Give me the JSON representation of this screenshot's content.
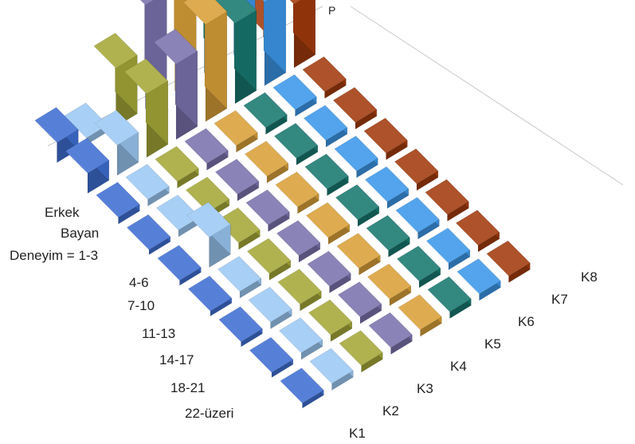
{
  "chart_data": {
    "type": "bar3d",
    "title": "",
    "corner_label": "P",
    "rows": [
      "Erkek",
      "Bayan",
      "Deneyim = 1-3",
      "4-6",
      "7-10",
      "11-13",
      "14-17",
      "18-21",
      "22-üzeri"
    ],
    "columns": [
      "K1",
      "K2",
      "K3",
      "K4",
      "K5",
      "K6",
      "K7",
      "K8"
    ],
    "series": [
      {
        "name": "K1",
        "color": "#3f6fd3",
        "values": [
          0.12,
          0.12,
          0.04,
          0.03,
          0.03,
          0.03,
          0.03,
          0.03,
          0.03
        ]
      },
      {
        "name": "K2",
        "color": "#9cc9f4",
        "values": [
          0.04,
          0.18,
          0.04,
          0.04,
          0.18,
          0.04,
          0.04,
          0.04,
          0.04
        ]
      },
      {
        "name": "K3",
        "color": "#a5a838",
        "values": [
          0.35,
          0.38,
          0.04,
          0.04,
          0.04,
          0.04,
          0.04,
          0.04,
          0.04
        ]
      },
      {
        "name": "K4",
        "color": "#7a72ad",
        "values": [
          0.62,
          0.45,
          0.04,
          0.04,
          0.04,
          0.04,
          0.04,
          0.04,
          0.04
        ]
      },
      {
        "name": "K5",
        "color": "#d9a038",
        "values": [
          0.82,
          0.58,
          0.04,
          0.04,
          0.04,
          0.04,
          0.04,
          0.04,
          0.04
        ]
      },
      {
        "name": "K6",
        "color": "#17786f",
        "values": [
          0.95,
          0.48,
          0.04,
          0.04,
          0.04,
          0.04,
          0.04,
          0.04,
          0.04
        ]
      },
      {
        "name": "K7",
        "color": "#3c98ea",
        "values": [
          1.0,
          0.5,
          0.04,
          0.04,
          0.04,
          0.04,
          0.04,
          0.04,
          0.04
        ]
      },
      {
        "name": "K8",
        "color": "#a23a0d",
        "values": [
          0.04,
          0.38,
          0.04,
          0.04,
          0.04,
          0.04,
          0.04,
          0.04,
          0.04
        ]
      }
    ],
    "zlim": [
      0,
      1
    ],
    "grid": false,
    "legend": "none"
  }
}
